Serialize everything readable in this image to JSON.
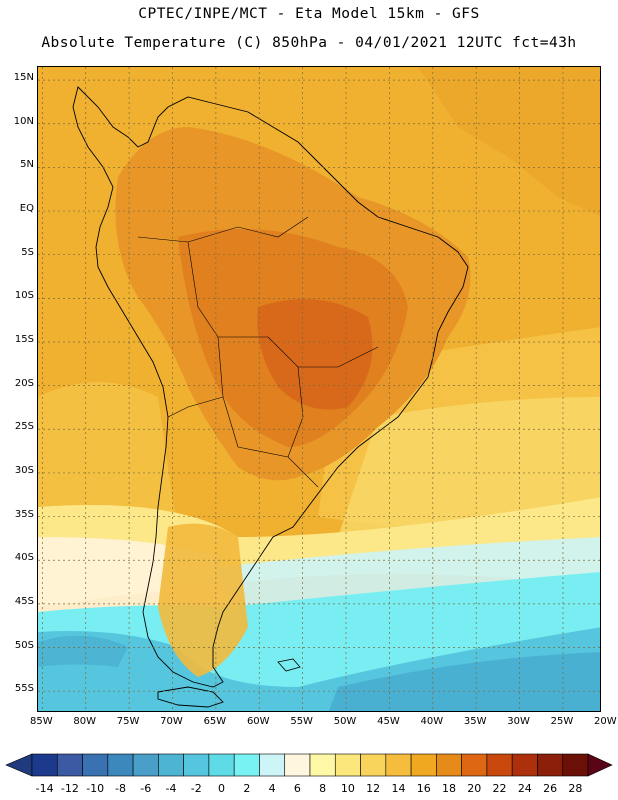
{
  "header": {
    "line1": "CPTEC/INPE/MCT -  Eta Model 15km - GFS",
    "line2": "Absolute Temperature (C) 850hPa - 04/01/2021 12UTC fct=43h"
  },
  "map": {
    "lat_labels": [
      "15N",
      "10N",
      "5N",
      "EQ",
      "5S",
      "10S",
      "15S",
      "20S",
      "25S",
      "30S",
      "35S",
      "40S",
      "45S",
      "50S",
      "55S"
    ],
    "lat_values": [
      15,
      10,
      5,
      0,
      -5,
      -10,
      -15,
      -20,
      -25,
      -30,
      -35,
      -40,
      -45,
      -50,
      -55
    ],
    "lon_labels": [
      "85W",
      "80W",
      "75W",
      "70W",
      "65W",
      "60W",
      "55W",
      "50W",
      "45W",
      "40W",
      "35W",
      "30W",
      "25W",
      "20W"
    ],
    "lon_values": [
      -85,
      -80,
      -75,
      -70,
      -65,
      -60,
      -55,
      -50,
      -45,
      -40,
      -35,
      -30,
      -25,
      -20
    ],
    "lon_range": [
      -85.5,
      -20.5
    ],
    "lat_range": [
      -57.5,
      16.5
    ],
    "gridlines": true
  },
  "colorbar": {
    "labels": [
      "-14",
      "-12",
      "-10",
      "-8",
      "-6",
      "-4",
      "-2",
      "0",
      "2",
      "4",
      "6",
      "8",
      "10",
      "12",
      "14",
      "16",
      "18",
      "20",
      "22",
      "24",
      "26",
      "28"
    ],
    "colors": [
      "#1c3a8c",
      "#3b5aa3",
      "#3a71b0",
      "#3c87bc",
      "#4a9fc8",
      "#4eb4d4",
      "#55c6de",
      "#5fdbe8",
      "#78f2f2",
      "#cdf4f7",
      "#fff6df",
      "#fef7a5",
      "#fce77c",
      "#f9d45d",
      "#f4bd3d",
      "#efa81f",
      "#e68a19",
      "#dd6712",
      "#c9480d",
      "#ac300c",
      "#8c1f0a",
      "#6b1007"
    ],
    "left_arrow_color": "#203a80",
    "right_arrow_color": "#5a0418"
  }
}
